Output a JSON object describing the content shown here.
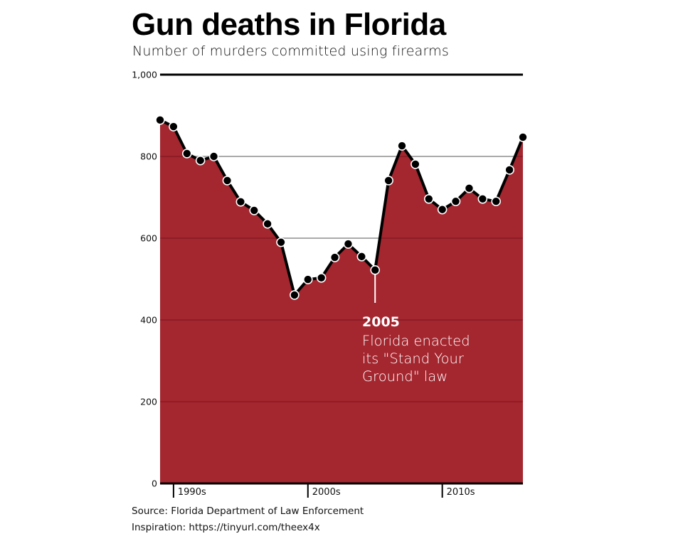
{
  "header": {
    "title": "Gun deaths in Florida",
    "subtitle": "Number of murders committed using firearms"
  },
  "footer": {
    "source": "Source: Florida Department of Law Enforcement",
    "inspiration": "Inspiration: https://tinyurl.com/theex4x"
  },
  "colors": {
    "area_fill": "#a4262f",
    "line": "#000000",
    "gridline_outside": "#aaaaaa",
    "gridline_inside": "#8e1d25",
    "point_stroke": "#ffffff",
    "annotation_text": "#ffffff"
  },
  "chart_data": {
    "type": "area",
    "title": "Gun deaths in Florida",
    "subtitle": "Number of murders committed using firearms",
    "xlabel": "",
    "ylabel": "",
    "x": [
      1989,
      1990,
      1991,
      1992,
      1993,
      1994,
      1995,
      1996,
      1997,
      1998,
      1999,
      2000,
      2001,
      2002,
      2003,
      2004,
      2005,
      2006,
      2007,
      2008,
      2009,
      2010,
      2011,
      2012,
      2013,
      2014,
      2015,
      2016
    ],
    "series": [
      {
        "name": "Murders committed using firearms",
        "values": [
          889,
          873,
          807,
          790,
          800,
          741,
          689,
          668,
          635,
          590,
          461,
          499,
          503,
          553,
          586,
          555,
          522,
          741,
          826,
          781,
          696,
          670,
          690,
          722,
          696,
          690,
          767,
          847
        ]
      }
    ],
    "xlim": [
      1989,
      2016
    ],
    "ylim": [
      0,
      1000
    ],
    "y_ticks": [
      {
        "value": 0,
        "label": "0"
      },
      {
        "value": 200,
        "label": "200"
      },
      {
        "value": 400,
        "label": "400"
      },
      {
        "value": 600,
        "label": "600"
      },
      {
        "value": 800,
        "label": "800"
      },
      {
        "value": 1000,
        "label": "1,000"
      }
    ],
    "x_ticks": [
      {
        "value": 1990,
        "label": "1990s"
      },
      {
        "value": 2000,
        "label": "2000s"
      },
      {
        "value": 2010,
        "label": "2010s"
      }
    ],
    "grid": true,
    "annotation": {
      "x": 2005,
      "title": "2005",
      "lines": [
        "Florida enacted",
        "its \"Stand Your",
        "Ground\" law"
      ]
    }
  }
}
